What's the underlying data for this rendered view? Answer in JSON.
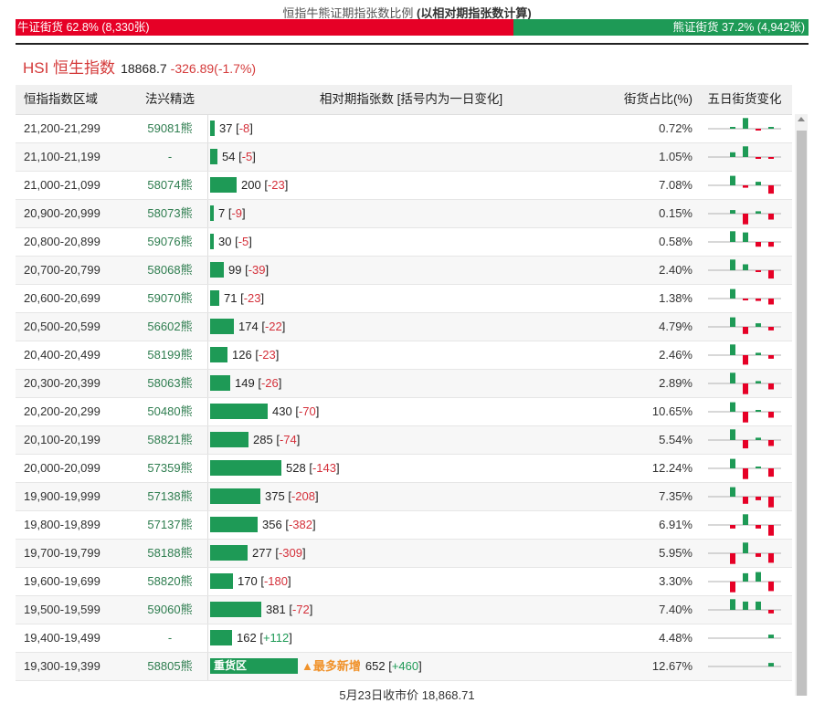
{
  "header": {
    "title_prefix": "恒指牛熊证期指张数比例",
    "title_suffix": "(以相对期指张数计算)",
    "bull": {
      "label": "牛证街货 62.8% (8,330张)",
      "pct": 62.8
    },
    "bear": {
      "label": "熊证街货 37.2% (4,942张)",
      "pct": 37.2
    }
  },
  "index": {
    "name": "HSI 恒生指数",
    "price": "18868.7",
    "change": "-326.89(-1.7%)"
  },
  "columns": [
    "恒指指数区域",
    "法兴精选",
    "相对期指张数 [括号内为一日变化]",
    "街货占比(%)",
    "五日街货变化"
  ],
  "colors": {
    "bull": "#e60026",
    "bear": "#1e9a56",
    "accent": "#d43a3a",
    "new": "#f0922b"
  },
  "rows": [
    {
      "range": "21,200-21,299",
      "pick": "59081熊",
      "count": 37,
      "count_text": "37",
      "change": "-8",
      "pct": "0.72%",
      "spark": [
        0.15,
        0.9,
        -0.05,
        0.05,
        -0.35
      ]
    },
    {
      "range": "21,100-21,199",
      "pick": "-",
      "count": 54,
      "count_text": "54",
      "change": "-5",
      "pct": "1.05%",
      "spark": [
        0.4,
        0.9,
        -0.05,
        -0.1,
        -0.1
      ]
    },
    {
      "range": "21,000-21,099",
      "pick": "58074熊",
      "count": 200,
      "count_text": "200",
      "change": "-23",
      "pct": "7.08%",
      "spark": [
        0.8,
        -0.2,
        0.3,
        -0.7,
        0
      ]
    },
    {
      "range": "20,900-20,999",
      "pick": "58073熊",
      "count": 7,
      "count_text": "7",
      "change": "-9",
      "pct": "0.15%",
      "spark": [
        0.3,
        -0.9,
        0.2,
        -0.5,
        0
      ]
    },
    {
      "range": "20,800-20,899",
      "pick": "59076熊",
      "count": 30,
      "count_text": "30",
      "change": "-5",
      "pct": "0.58%",
      "spark": [
        0.9,
        0.8,
        -0.4,
        -0.4,
        0
      ]
    },
    {
      "range": "20,700-20,799",
      "pick": "58068熊",
      "count": 99,
      "count_text": "99",
      "change": "-39",
      "pct": "2.40%",
      "spark": [
        0.9,
        0.5,
        -0.05,
        -0.7,
        0
      ]
    },
    {
      "range": "20,600-20,699",
      "pick": "59070熊",
      "count": 71,
      "count_text": "71",
      "change": "-23",
      "pct": "1.38%",
      "spark": [
        0.8,
        -0.1,
        -0.2,
        -0.5,
        0
      ]
    },
    {
      "range": "20,500-20,599",
      "pick": "56602熊",
      "count": 174,
      "count_text": "174",
      "change": "-22",
      "pct": "4.79%",
      "spark": [
        0.8,
        -0.6,
        0.3,
        -0.3,
        0
      ]
    },
    {
      "range": "20,400-20,499",
      "pick": "58199熊",
      "count": 126,
      "count_text": "126",
      "change": "-23",
      "pct": "2.46%",
      "spark": [
        0.9,
        -0.8,
        0.2,
        -0.3,
        0
      ]
    },
    {
      "range": "20,300-20,399",
      "pick": "58063熊",
      "count": 149,
      "count_text": "149",
      "change": "-26",
      "pct": "2.89%",
      "spark": [
        0.9,
        -0.9,
        0.2,
        -0.5,
        0
      ]
    },
    {
      "range": "20,200-20,299",
      "pick": "50480熊",
      "count": 430,
      "count_text": "430",
      "change": "-70",
      "pct": "10.65%",
      "spark": [
        0.8,
        -0.9,
        0.15,
        -0.5,
        0
      ]
    },
    {
      "range": "20,100-20,199",
      "pick": "58821熊",
      "count": 285,
      "count_text": "285",
      "change": "-74",
      "pct": "5.54%",
      "spark": [
        0.9,
        -0.7,
        0.2,
        -0.5,
        0
      ]
    },
    {
      "range": "20,000-20,099",
      "pick": "57359熊",
      "count": 528,
      "count_text": "528",
      "change": "-143",
      "pct": "12.24%",
      "spark": [
        0.8,
        -0.9,
        0.1,
        -0.7,
        0
      ]
    },
    {
      "range": "19,900-19,999",
      "pick": "57138熊",
      "count": 375,
      "count_text": "375",
      "change": "-208",
      "pct": "7.35%",
      "spark": [
        0.8,
        -0.6,
        -0.3,
        -0.9,
        0
      ]
    },
    {
      "range": "19,800-19,899",
      "pick": "57137熊",
      "count": 356,
      "count_text": "356",
      "change": "-382",
      "pct": "6.91%",
      "spark": [
        -0.3,
        0.9,
        -0.3,
        -0.9,
        0
      ]
    },
    {
      "range": "19,700-19,799",
      "pick": "58188熊",
      "count": 277,
      "count_text": "277",
      "change": "-309",
      "pct": "5.95%",
      "spark": [
        -0.9,
        0.9,
        -0.3,
        -0.8,
        0
      ]
    },
    {
      "range": "19,600-19,699",
      "pick": "58820熊",
      "count": 170,
      "count_text": "170",
      "change": "-180",
      "pct": "3.30%",
      "spark": [
        -0.9,
        0.7,
        0.8,
        -0.8,
        0
      ]
    },
    {
      "range": "19,500-19,599",
      "pick": "59060熊",
      "count": 381,
      "count_text": "381",
      "change": "-72",
      "pct": "7.40%",
      "spark": [
        0.9,
        0.7,
        0.7,
        -0.3,
        0
      ]
    },
    {
      "range": "19,400-19,499",
      "pick": "-",
      "count": 162,
      "count_text": "162",
      "change": "+112",
      "pct": "4.48%",
      "spark": [
        0,
        0,
        0,
        0.3,
        0.9
      ]
    },
    {
      "range": "19,300-19,399",
      "pick": "58805熊",
      "count": 652,
      "count_text": "652",
      "change": "+460",
      "pct": "12.67%",
      "spark": [
        0,
        0,
        0,
        0.3,
        0.9
      ],
      "bar_label": "重货区",
      "new_label": "▲最多新增"
    }
  ],
  "footer": "5月23日收市价 18,868.71"
}
